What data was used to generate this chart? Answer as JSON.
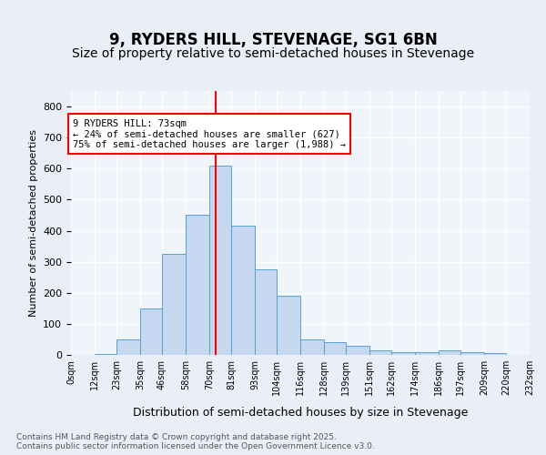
{
  "title": "9, RYDERS HILL, STEVENAGE, SG1 6BN",
  "subtitle": "Size of property relative to semi-detached houses in Stevenage",
  "xlabel": "Distribution of semi-detached houses by size in Stevenage",
  "ylabel": "Number of semi-detached properties",
  "footnote": "Contains HM Land Registry data © Crown copyright and database right 2025.\nContains public sector information licensed under the Open Government Licence v3.0.",
  "bin_labels": [
    "0sqm",
    "12sqm",
    "23sqm",
    "35sqm",
    "46sqm",
    "58sqm",
    "70sqm",
    "81sqm",
    "93sqm",
    "104sqm",
    "116sqm",
    "128sqm",
    "139sqm",
    "151sqm",
    "162sqm",
    "174sqm",
    "186sqm",
    "197sqm",
    "209sqm",
    "220sqm",
    "232sqm"
  ],
  "bar_heights": [
    0,
    2,
    50,
    150,
    325,
    450,
    610,
    415,
    275,
    190,
    50,
    40,
    30,
    15,
    10,
    10,
    15,
    10,
    5,
    0
  ],
  "bar_color": "#c5d8f0",
  "bar_edge_color": "#5a9fd4",
  "bin_edges": [
    0,
    12,
    23,
    35,
    46,
    58,
    70,
    81,
    93,
    104,
    116,
    128,
    139,
    151,
    162,
    174,
    186,
    197,
    209,
    220,
    232
  ],
  "property_size": 73,
  "pct_smaller": 24,
  "count_smaller": 627,
  "pct_larger": 75,
  "count_larger": 1988,
  "ylim": [
    0,
    850
  ],
  "yticks": [
    0,
    100,
    200,
    300,
    400,
    500,
    600,
    700,
    800
  ],
  "bg_color": "#eaeff7",
  "plot_bg_color": "#f0f5fb",
  "grid_color": "#ffffff",
  "title_fontsize": 12,
  "subtitle_fontsize": 10
}
